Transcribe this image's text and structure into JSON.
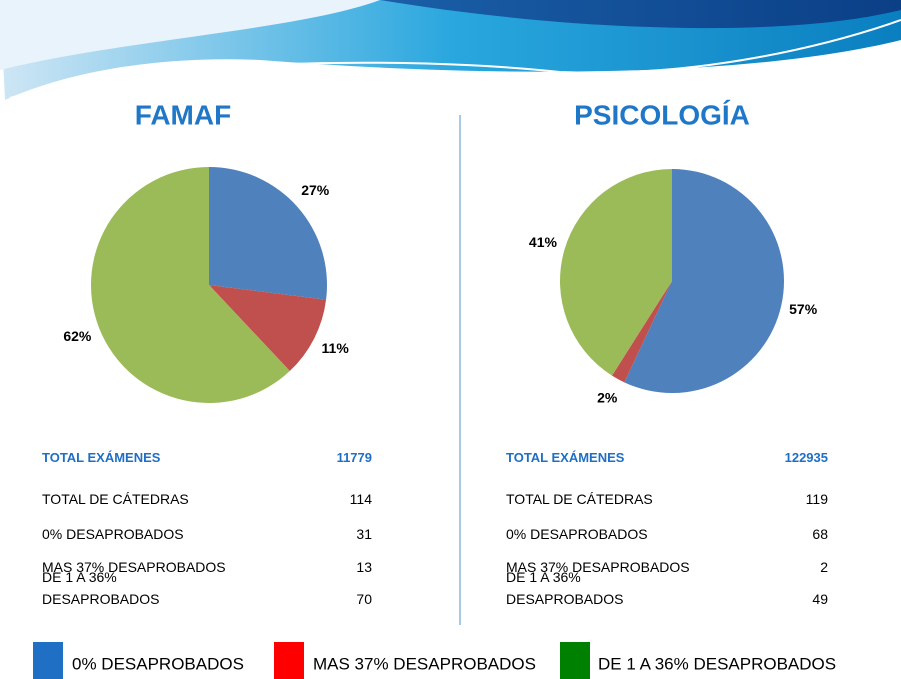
{
  "chart_data": [
    {
      "type": "pie",
      "title": "FAMAF",
      "values": [
        27,
        11,
        62
      ],
      "value_labels": [
        "27%",
        "11%",
        "62%"
      ],
      "colors": [
        "#4f81bd",
        "#c0504d",
        "#9bbb59"
      ]
    },
    {
      "type": "pie",
      "title": "PSICOLOGÍA",
      "values": [
        57,
        2,
        41
      ],
      "value_labels": [
        "57%",
        "2%",
        "41%"
      ],
      "colors": [
        "#4f81bd",
        "#c0504d",
        "#9bbb59"
      ]
    }
  ],
  "tables": [
    {
      "header": [
        "TOTAL EXÁMENES",
        11779
      ],
      "rows": [
        [
          "TOTAL DE CÁTEDRAS",
          114
        ],
        [
          "0% DESAPROBADOS",
          31
        ],
        [
          "MAS 37% DESAPROBADOS",
          13
        ],
        [
          "DE 1 A 36% DESAPROBADOS",
          70
        ]
      ]
    },
    {
      "header": [
        "TOTAL EXÁMENES",
        122935
      ],
      "rows": [
        [
          "TOTAL DE CÁTEDRAS",
          119
        ],
        [
          "0% DESAPROBADOS",
          68
        ],
        [
          "MAS 37% DESAPROBADOS",
          2
        ],
        [
          "DE 1 A 36% DESAPROBADOS",
          49
        ]
      ]
    }
  ],
  "legend": [
    {
      "label": "0% DESAPROBADOS",
      "color": "#1f6fc5"
    },
    {
      "label": "MAS 37% DESAPROBADOS",
      "color": "#ff0000"
    },
    {
      "label": "DE 1 A 36% DESAPROBADOS",
      "color": "#008000"
    }
  ]
}
